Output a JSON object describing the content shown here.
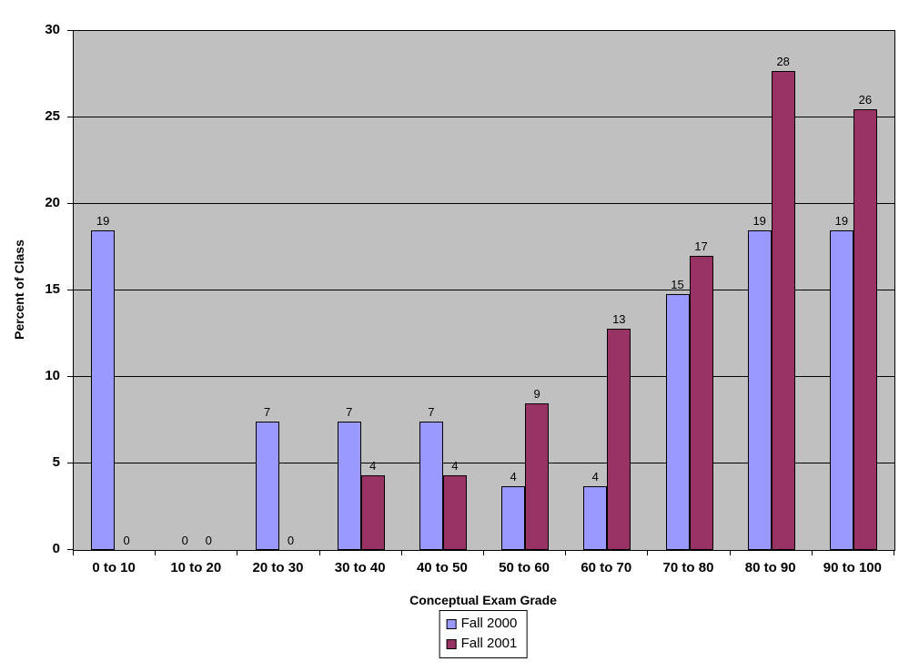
{
  "chart_data": {
    "type": "bar",
    "title": "",
    "xlabel": "Conceptual Exam Grade",
    "ylabel": "Percent of Class",
    "categories": [
      "0 to 10",
      "10 to 20",
      "20 to 30",
      "30 to 40",
      "40 to 50",
      "50 to 60",
      "60 to 70",
      "70 to 80",
      "80 to 90",
      "90 to 100"
    ],
    "series": [
      {
        "name": "Fall 2000",
        "color": "#9999FF",
        "values": [
          18.5,
          0,
          7.4,
          7.4,
          7.4,
          3.7,
          3.7,
          14.8,
          18.5,
          18.5
        ],
        "labels": [
          "19",
          "0",
          "7",
          "7",
          "7",
          "4",
          "4",
          "15",
          "19",
          "19"
        ]
      },
      {
        "name": "Fall 2001",
        "color": "#993366",
        "values": [
          0,
          0,
          0,
          4.3,
          4.3,
          8.5,
          12.8,
          17.0,
          27.7,
          25.5
        ],
        "labels": [
          "0",
          "0",
          "0",
          "4",
          "4",
          "9",
          "13",
          "17",
          "28",
          "26"
        ]
      }
    ],
    "ylim": [
      0,
      30
    ],
    "ytick_step": 5,
    "yticks": [
      "0",
      "5",
      "10",
      "15",
      "20",
      "25",
      "30"
    ],
    "grid": "horizontal",
    "legend_position": "bottom-center",
    "plot_bg": "#C0C0C0",
    "gridline_color": "#000000",
    "background": "#FFFFFF"
  }
}
